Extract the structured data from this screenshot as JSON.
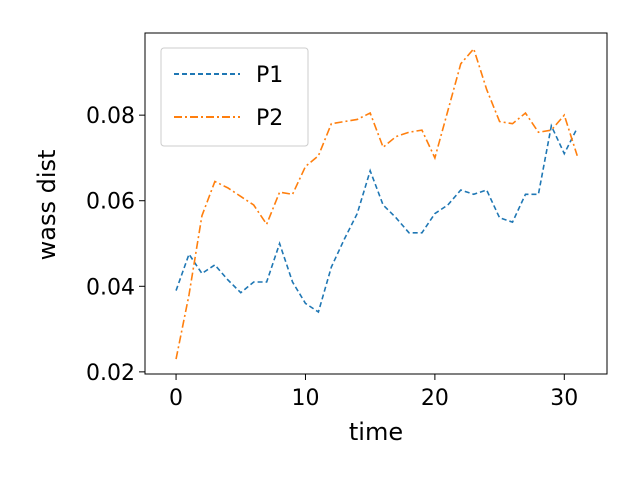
{
  "chart_data": {
    "type": "line",
    "xlabel": "time",
    "ylabel": "wass dist",
    "xlim": [
      -2.4,
      33.3
    ],
    "ylim": [
      0.0195,
      0.0992
    ],
    "xticks": [
      0,
      10,
      20,
      30
    ],
    "xtick_labels": [
      "0",
      "10",
      "20",
      "30"
    ],
    "yticks": [
      0.02,
      0.04,
      0.06,
      0.08
    ],
    "ytick_labels": [
      "0.02",
      "0.04",
      "0.06",
      "0.08"
    ],
    "grid": false,
    "legend_position": "top-left",
    "x": [
      0,
      1,
      2,
      3,
      4,
      5,
      6,
      7,
      8,
      9,
      10,
      11,
      12,
      13,
      14,
      15,
      16,
      17,
      18,
      19,
      20,
      21,
      22,
      23,
      24,
      25,
      26,
      27,
      28,
      29,
      30,
      31
    ],
    "series": [
      {
        "name": "P1",
        "color": "#1f77b4",
        "style": "dashed",
        "values": [
          0.039,
          0.0475,
          0.043,
          0.045,
          0.0415,
          0.0385,
          0.041,
          0.041,
          0.05,
          0.041,
          0.036,
          0.034,
          0.0445,
          0.051,
          0.057,
          0.067,
          0.059,
          0.056,
          0.0525,
          0.0525,
          0.057,
          0.059,
          0.0625,
          0.0615,
          0.0625,
          0.056,
          0.055,
          0.0615,
          0.0615,
          0.0775,
          0.071,
          0.077
        ]
      },
      {
        "name": "P2",
        "color": "#ff7f0e",
        "style": "dashdot",
        "values": [
          0.023,
          0.038,
          0.0565,
          0.0645,
          0.063,
          0.061,
          0.059,
          0.0545,
          0.062,
          0.0615,
          0.068,
          0.0705,
          0.078,
          0.0785,
          0.079,
          0.0805,
          0.0725,
          0.075,
          0.076,
          0.0765,
          0.07,
          0.081,
          0.092,
          0.0955,
          0.086,
          0.0785,
          0.078,
          0.0805,
          0.076,
          0.0765,
          0.08,
          0.0705
        ]
      }
    ]
  }
}
